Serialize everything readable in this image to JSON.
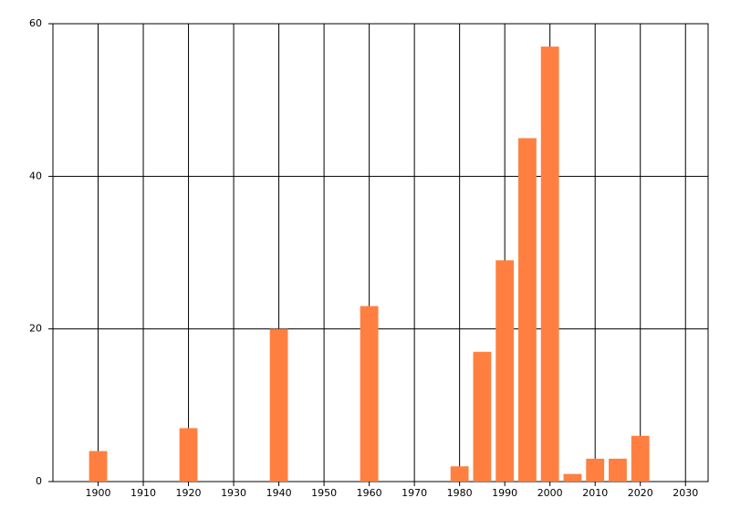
{
  "chart_data": {
    "type": "bar",
    "x": [
      1900,
      1920,
      1940,
      1960,
      1980,
      1985,
      1990,
      1995,
      2000,
      2005,
      2010,
      2015,
      2020
    ],
    "values": [
      4,
      7,
      20,
      23,
      2,
      17,
      29,
      45,
      57,
      1,
      3,
      3,
      6
    ],
    "color": "#ff7f40",
    "xlim": [
      1890,
      2035
    ],
    "xticks": [
      1900,
      1910,
      1920,
      1930,
      1940,
      1950,
      1960,
      1970,
      1980,
      1990,
      2000,
      2010,
      2020,
      2030
    ],
    "ylim": [
      0,
      60
    ],
    "yticks": [
      0,
      20,
      40,
      60
    ],
    "grid": true
  }
}
